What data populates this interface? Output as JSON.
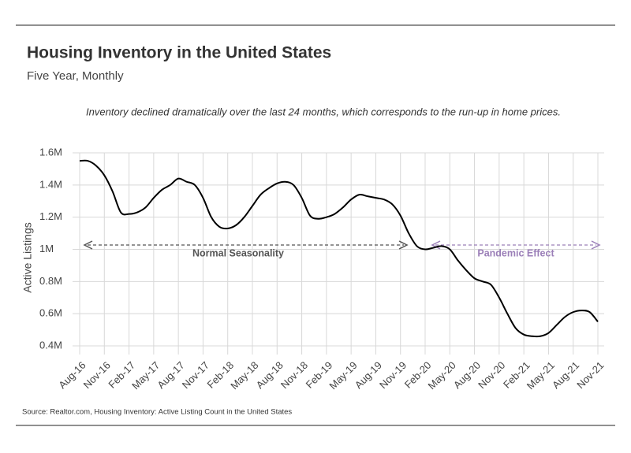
{
  "chart_data": {
    "type": "line",
    "title": "Housing Inventory in the United States",
    "subtitle": "Five Year, Monthly",
    "note": "Inventory declined dramatically over the last 24 months, which corresponds to the run-up in home prices.",
    "y_label": "Active Listings",
    "source": "Source:  Realtor.com, Housing Inventory: Active Listing Count in the United States",
    "categories": [
      "Aug-16",
      null,
      null,
      "Nov-16",
      null,
      null,
      "Feb-17",
      null,
      null,
      "May-17",
      null,
      null,
      "Aug-17",
      null,
      null,
      "Nov-17",
      null,
      null,
      "Feb-18",
      null,
      null,
      "May-18",
      null,
      null,
      "Aug-18",
      null,
      null,
      "Nov-18",
      null,
      null,
      "Feb-19",
      null,
      null,
      "May-19",
      null,
      null,
      "Aug-19",
      null,
      null,
      "Nov-19",
      null,
      null,
      "Feb-20",
      null,
      null,
      "May-20",
      null,
      null,
      "Aug-20",
      null,
      null,
      "Nov-20",
      null,
      null,
      "Feb-21",
      null,
      null,
      "May-21",
      null,
      null,
      "Aug-21",
      null,
      null,
      "Nov-21"
    ],
    "series": [
      {
        "name": "Active Listings",
        "color": "#000000",
        "values": [
          1550000,
          1550000,
          1520000,
          1460000,
          1360000,
          1230000,
          1220000,
          1230000,
          1260000,
          1320000,
          1370000,
          1400000,
          1440000,
          1420000,
          1400000,
          1320000,
          1200000,
          1140000,
          1130000,
          1150000,
          1200000,
          1270000,
          1340000,
          1380000,
          1410000,
          1420000,
          1400000,
          1320000,
          1210000,
          1190000,
          1200000,
          1220000,
          1260000,
          1310000,
          1340000,
          1330000,
          1320000,
          1310000,
          1280000,
          1210000,
          1100000,
          1020000,
          1000000,
          1010000,
          1020000,
          1000000,
          930000,
          870000,
          820000,
          800000,
          780000,
          700000,
          600000,
          510000,
          470000,
          460000,
          460000,
          480000,
          530000,
          580000,
          610000,
          620000,
          610000,
          550000
        ]
      }
    ],
    "ylim": [
      400000,
      1600000
    ],
    "yticks": [
      {
        "value": 400000,
        "label": "0.4M"
      },
      {
        "value": 600000,
        "label": "0.6M"
      },
      {
        "value": 800000,
        "label": "0.8M"
      },
      {
        "value": 1000000,
        "label": "1M"
      },
      {
        "value": 1200000,
        "label": "1.2M"
      },
      {
        "value": 1400000,
        "label": "1.4M"
      },
      {
        "value": 1600000,
        "label": "1.6M"
      }
    ],
    "grid": true,
    "annotations": [
      {
        "text": "Normal Seasonality",
        "color": "#555555"
      },
      {
        "text": "Pandemic Effect",
        "color": "#9b7fb8"
      }
    ]
  }
}
